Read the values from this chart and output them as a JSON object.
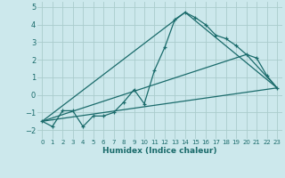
{
  "xlabel": "Humidex (Indice chaleur)",
  "background_color": "#cce8ec",
  "grid_color": "#aacccc",
  "line_color": "#1a6b6b",
  "xlim": [
    -0.5,
    23.5
  ],
  "ylim": [
    -2.5,
    5.3
  ],
  "yticks": [
    -2,
    -1,
    0,
    1,
    2,
    3,
    4,
    5
  ],
  "xticks": [
    0,
    1,
    2,
    3,
    4,
    5,
    6,
    7,
    8,
    9,
    10,
    11,
    12,
    13,
    14,
    15,
    16,
    17,
    18,
    19,
    20,
    21,
    22,
    23
  ],
  "series_main": {
    "x": [
      0,
      1,
      2,
      3,
      4,
      5,
      6,
      7,
      8,
      9,
      10,
      11,
      12,
      13,
      14,
      15,
      16,
      17,
      18,
      19,
      20,
      21,
      22,
      23
    ],
    "y": [
      -1.5,
      -1.8,
      -0.9,
      -0.9,
      -1.8,
      -1.2,
      -1.2,
      -1.0,
      -0.4,
      0.3,
      -0.5,
      1.4,
      2.7,
      4.3,
      4.7,
      4.4,
      4.0,
      3.4,
      3.2,
      2.8,
      2.3,
      2.1,
      1.1,
      0.4
    ]
  },
  "line1": {
    "x": [
      0,
      23
    ],
    "y": [
      -1.5,
      0.4
    ]
  },
  "line2": {
    "x": [
      0,
      14,
      23
    ],
    "y": [
      -1.5,
      4.7,
      0.4
    ]
  },
  "line3": {
    "x": [
      0,
      20,
      23
    ],
    "y": [
      -1.5,
      2.3,
      0.4
    ]
  }
}
